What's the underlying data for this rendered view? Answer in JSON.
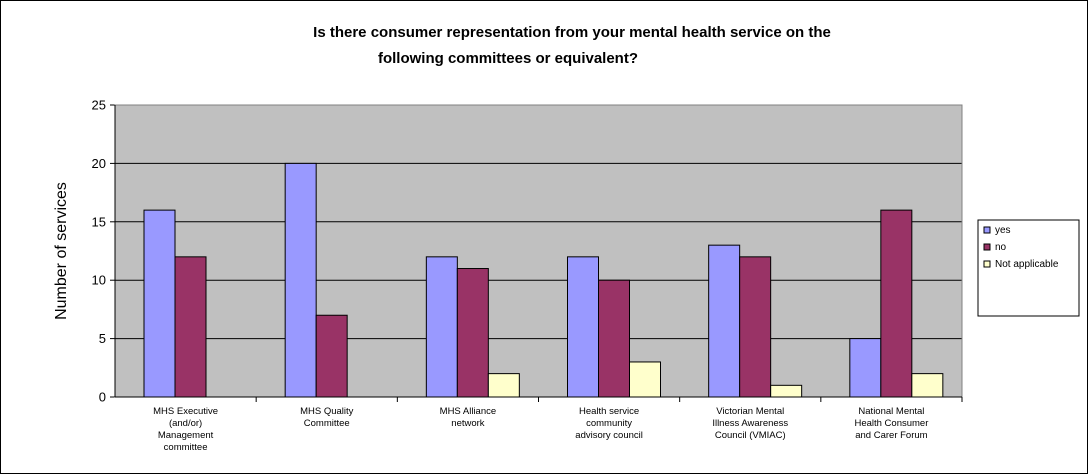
{
  "chart_data": {
    "type": "bar",
    "title_lines": [
      "Is there consumer representation from your mental health service on the",
      "following committees or equivalent?"
    ],
    "ylabel": "Number of services",
    "ylim": [
      0,
      25
    ],
    "yticks": [
      0,
      5,
      10,
      15,
      20,
      25
    ],
    "grid": true,
    "legend_position": "right",
    "categories": [
      [
        "MHS Executive",
        "(and/or)",
        "Management",
        "committee"
      ],
      [
        "MHS Quality",
        "Committee"
      ],
      [
        "MHS Alliance",
        "network"
      ],
      [
        "Health service",
        "community",
        "advisory council"
      ],
      [
        "Victorian Mental",
        "Illness Awareness",
        "Council (VMIAC)"
      ],
      [
        "National Mental",
        "Health Consumer",
        "and Carer Forum"
      ]
    ],
    "series": [
      {
        "name": "yes",
        "color": "#9999FF",
        "values": [
          16,
          20,
          12,
          12,
          13,
          5
        ]
      },
      {
        "name": "no",
        "color": "#993366",
        "values": [
          12,
          7,
          11,
          10,
          12,
          16
        ]
      },
      {
        "name": "Not applicable",
        "color": "#FFFFCC",
        "values": [
          0,
          0,
          2,
          3,
          1,
          2
        ]
      }
    ]
  },
  "colors": {
    "plot_background": "#C0C0C0",
    "gridline": "#000000",
    "bar_outline": "#000000"
  }
}
